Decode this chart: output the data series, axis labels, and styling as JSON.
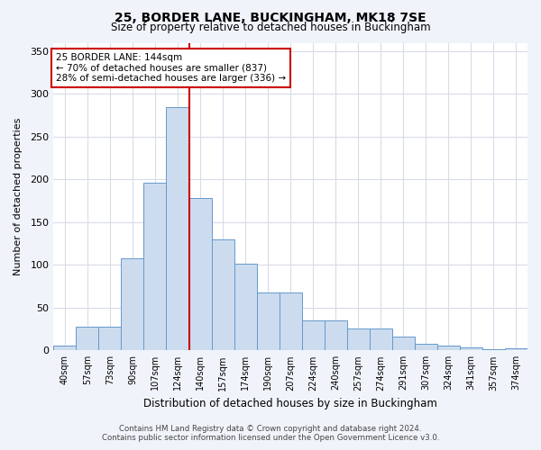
{
  "title1": "25, BORDER LANE, BUCKINGHAM, MK18 7SE",
  "title2": "Size of property relative to detached houses in Buckingham",
  "xlabel": "Distribution of detached houses by size in Buckingham",
  "ylabel": "Number of detached properties",
  "footer1": "Contains HM Land Registry data © Crown copyright and database right 2024.",
  "footer2": "Contains public sector information licensed under the Open Government Licence v3.0.",
  "annotation_line1": "25 BORDER LANE: 144sqm",
  "annotation_line2": "← 70% of detached houses are smaller (837)",
  "annotation_line3": "28% of semi-detached houses are larger (336) →",
  "bar_color": "#ccdcee",
  "bar_edge_color": "#6699cc",
  "ref_line_color": "#cc0000",
  "categories": [
    "40sqm",
    "57sqm",
    "73sqm",
    "90sqm",
    "107sqm",
    "124sqm",
    "140sqm",
    "157sqm",
    "174sqm",
    "190sqm",
    "207sqm",
    "224sqm",
    "240sqm",
    "257sqm",
    "274sqm",
    "291sqm",
    "307sqm",
    "324sqm",
    "341sqm",
    "357sqm",
    "374sqm"
  ],
  "values": [
    6,
    28,
    28,
    108,
    196,
    285,
    178,
    130,
    101,
    68,
    68,
    35,
    35,
    26,
    26,
    16,
    8,
    6,
    3,
    1,
    2
  ],
  "ylim": [
    0,
    360
  ],
  "yticks": [
    0,
    50,
    100,
    150,
    200,
    250,
    300,
    350
  ],
  "bg_color": "#f0f4fa",
  "plot_bg_color": "#ffffff",
  "grid_color": "#d8dce8"
}
